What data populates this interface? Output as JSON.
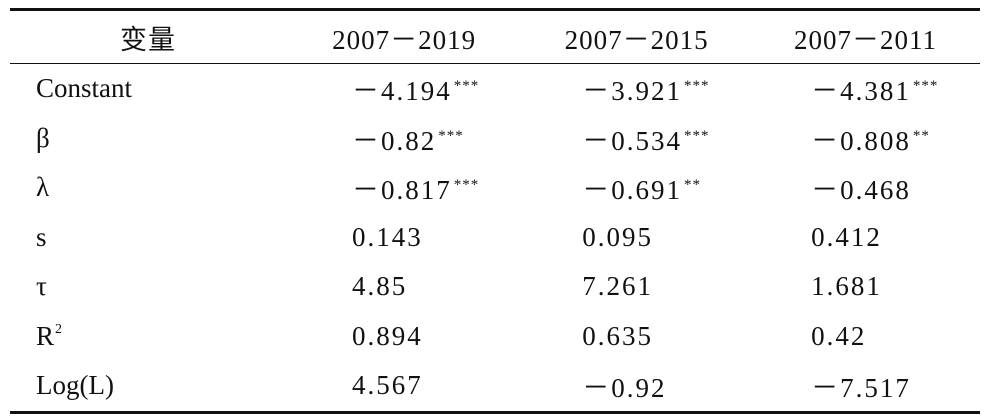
{
  "table": {
    "header": [
      "变量",
      "2007－2019",
      "2007－2015",
      "2007－2011"
    ],
    "rows": [
      {
        "label": "Constant",
        "cells": [
          {
            "value": "－4.194",
            "stars": "***"
          },
          {
            "value": "－3.921",
            "stars": "***"
          },
          {
            "value": "－4.381",
            "stars": "***"
          }
        ]
      },
      {
        "label": "β",
        "cells": [
          {
            "value": "－0.82",
            "stars": "***"
          },
          {
            "value": "－0.534",
            "stars": "***"
          },
          {
            "value": "－0.808",
            "stars": "**"
          }
        ]
      },
      {
        "label": "λ",
        "cells": [
          {
            "value": "－0.817",
            "stars": "***"
          },
          {
            "value": "－0.691",
            "stars": "**"
          },
          {
            "value": "－0.468"
          }
        ]
      },
      {
        "label": "s",
        "cells": [
          {
            "value": "0.143"
          },
          {
            "value": "0.095"
          },
          {
            "value": "0.412"
          }
        ]
      },
      {
        "label": "τ",
        "cells": [
          {
            "value": "4.85"
          },
          {
            "value": "7.261"
          },
          {
            "value": "1.681"
          }
        ]
      },
      {
        "label": "R",
        "label_sup": "2",
        "cells": [
          {
            "value": "0.894"
          },
          {
            "value": "0.635"
          },
          {
            "value": "0.42"
          }
        ]
      },
      {
        "label": "Log(L)",
        "cells": [
          {
            "value": "4.567"
          },
          {
            "value": "－0.92"
          },
          {
            "value": "－7.517"
          }
        ]
      }
    ]
  }
}
